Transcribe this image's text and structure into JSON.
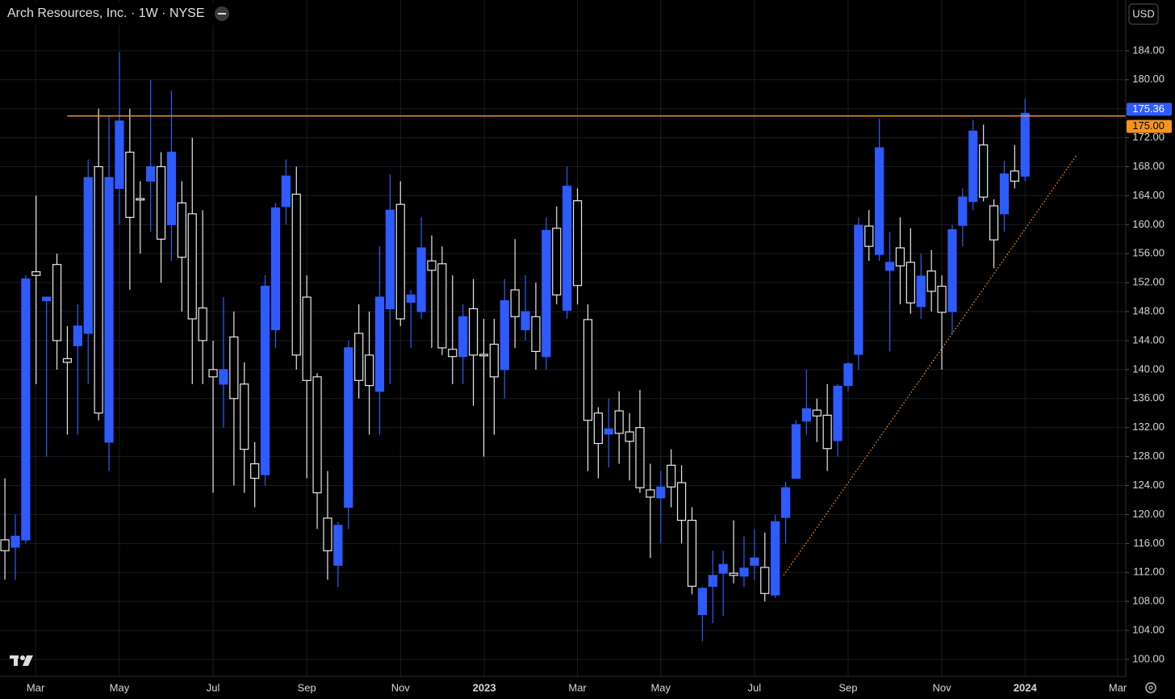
{
  "chart_data": {
    "type": "candlestick",
    "title": "Arch Resources, Inc. · 1W · NYSE",
    "currency": "USD",
    "up_color": "#2e5bff",
    "down_color": "#e8e8e8",
    "grid": true,
    "open": [
      116.5,
      115.5,
      116.5,
      153.5,
      149.5,
      154.5,
      141.5,
      143.3,
      145,
      168,
      130,
      165,
      170,
      163.6,
      166,
      168,
      160,
      163,
      161.5,
      148.5,
      140,
      138,
      144.5,
      138,
      127,
      125.5,
      145.5,
      162.5,
      164.2,
      150,
      139,
      119.5,
      113,
      121,
      145,
      142,
      137,
      148.4,
      162.8,
      149.3,
      148,
      155,
      154.6,
      142.8,
      141.8,
      148.4,
      142.1,
      143.5,
      140,
      151,
      145.5,
      147.3,
      141.8,
      159.5,
      148.2,
      163.3,
      146.9,
      134,
      131.1,
      134.3,
      131.4,
      132,
      123.4,
      122.3,
      126.8,
      124.4,
      119.2,
      106.2,
      110.1,
      111.9,
      111.9,
      111.5,
      113,
      112.7,
      108.9,
      119.6,
      125,
      132.9,
      134.4,
      133.7,
      130.2,
      137.8,
      142.1,
      159.8,
      155.9,
      153.7,
      156.8,
      154.8,
      148.7,
      153.6,
      151.5,
      148,
      159.9,
      163.2,
      171,
      162.6,
      161.5,
      167.4,
      166.7
    ],
    "high": [
      125,
      120,
      153,
      164,
      150,
      156,
      146,
      149,
      169,
      176,
      175,
      183.8,
      176,
      166,
      180,
      170,
      178.5,
      166,
      172,
      162,
      144,
      150,
      148,
      141,
      130,
      153,
      163,
      169,
      168,
      153,
      139.5,
      126,
      119,
      144,
      149,
      148,
      157,
      167,
      166,
      151,
      161,
      158.5,
      157,
      153,
      149,
      152.5,
      147,
      147,
      152.5,
      158,
      153,
      152,
      161,
      162.5,
      168,
      165,
      149,
      134.8,
      136,
      137,
      134,
      137.2,
      127,
      126,
      129,
      126.8,
      121,
      110,
      115,
      115,
      119.2,
      117,
      118,
      117.5,
      120,
      124.5,
      133,
      140,
      136,
      138,
      138,
      141,
      161,
      162,
      174.6,
      159,
      161,
      159.5,
      156,
      156.5,
      153,
      160,
      165,
      174.5,
      173.8,
      163.5,
      168.8,
      171,
      177.4
    ],
    "low": [
      111,
      111,
      116,
      138,
      128,
      140,
      131,
      131,
      138,
      133,
      126,
      160,
      151,
      156,
      159,
      152,
      155,
      148,
      138,
      138,
      123,
      132,
      124,
      123,
      121,
      124,
      143,
      160,
      140,
      125,
      118,
      111,
      110,
      118,
      136,
      131,
      131,
      138,
      146,
      143,
      147,
      143,
      142,
      138,
      138,
      135,
      128,
      131,
      136,
      143,
      144,
      140,
      140,
      149,
      147,
      149,
      126,
      125,
      126.5,
      127,
      124.7,
      123,
      114,
      116,
      121,
      116,
      109,
      102.5,
      105,
      106,
      110.5,
      110,
      111,
      108,
      108.5,
      116,
      125,
      131,
      130,
      126,
      128,
      137,
      140,
      155,
      155,
      142.5,
      149,
      147.7,
      147,
      148,
      140,
      145,
      157,
      162,
      163.2,
      154,
      159,
      165,
      166
    ],
    "close": [
      115,
      117,
      152.5,
      153,
      150,
      144,
      141,
      146,
      166.5,
      134,
      166.5,
      174.3,
      161,
      163.4,
      168,
      158,
      170,
      155.5,
      147,
      144,
      139,
      140,
      136,
      129,
      125,
      151.5,
      162.3,
      166.7,
      142,
      138.5,
      123,
      115,
      118.5,
      143,
      138.5,
      137.8,
      150,
      162,
      147,
      150.3,
      156.8,
      153.7,
      143,
      141.8,
      147.3,
      142,
      141.9,
      139,
      149.5,
      147.3,
      148,
      142.5,
      159.2,
      150.3,
      165.3,
      151.6,
      133,
      129.8,
      131.8,
      131.2,
      130.1,
      123.7,
      122.4,
      123.8,
      123.8,
      119.2,
      110.1,
      109.8,
      111.6,
      113.1,
      111.6,
      112.6,
      114,
      109.1,
      119,
      123.7,
      132.4,
      134.6,
      133.6,
      129.1,
      137.7,
      140.8,
      159.9,
      157,
      170.6,
      154.8,
      154.3,
      149.2,
      152.9,
      150.8,
      147.9,
      159.3,
      163.8,
      172.9,
      163.8,
      157.9,
      167,
      166,
      175.36
    ],
    "xlim": [
      -0.47,
      107.67
    ],
    "xticks": [
      {
        "value": 2.95,
        "label": "Mar"
      },
      {
        "value": 11,
        "label": "May"
      },
      {
        "value": 20,
        "label": "Jul"
      },
      {
        "value": 29,
        "label": "Sep"
      },
      {
        "value": 38,
        "label": "Nov"
      },
      {
        "value": 46.05,
        "label": "2023"
      },
      {
        "value": 55,
        "label": "Mar"
      },
      {
        "value": 63,
        "label": "May"
      },
      {
        "value": 72,
        "label": "Jul"
      },
      {
        "value": 81,
        "label": "Sep"
      },
      {
        "value": 90,
        "label": "Nov"
      },
      {
        "value": 98,
        "label": "2024"
      },
      {
        "value": 106.9,
        "label": "Mar"
      }
    ],
    "ylim": [
      97.66,
      191.0
    ],
    "yticks": [
      {
        "value": 100,
        "label": "100.00"
      },
      {
        "value": 104,
        "label": "104.00"
      },
      {
        "value": 108,
        "label": "108.00"
      },
      {
        "value": 112,
        "label": "112.00"
      },
      {
        "value": 116,
        "label": "116.00"
      },
      {
        "value": 120,
        "label": "120.00"
      },
      {
        "value": 124,
        "label": "124.00"
      },
      {
        "value": 128,
        "label": "128.00"
      },
      {
        "value": 132,
        "label": "132.00"
      },
      {
        "value": 136,
        "label": "136.00"
      },
      {
        "value": 140,
        "label": "140.00"
      },
      {
        "value": 144,
        "label": "144.00"
      },
      {
        "value": 148,
        "label": "148.00"
      },
      {
        "value": 152,
        "label": "152.00"
      },
      {
        "value": 156,
        "label": "156.00"
      },
      {
        "value": 160,
        "label": "160.00"
      },
      {
        "value": 164,
        "label": "164.00"
      },
      {
        "value": 168,
        "label": "168.00"
      },
      {
        "value": 172,
        "label": "172.00"
      },
      {
        "value": 176,
        "label": "176.00"
      },
      {
        "value": 180,
        "label": "180.00"
      },
      {
        "value": 184,
        "label": "184.00"
      }
    ],
    "hline": {
      "value": 175,
      "label": "175.00",
      "color": "#f7931e"
    },
    "last_price": 175.36,
    "trendline": {
      "x": [
        74.8,
        103
      ],
      "y": [
        111.6,
        169.7
      ],
      "color": "#f7931e"
    }
  }
}
